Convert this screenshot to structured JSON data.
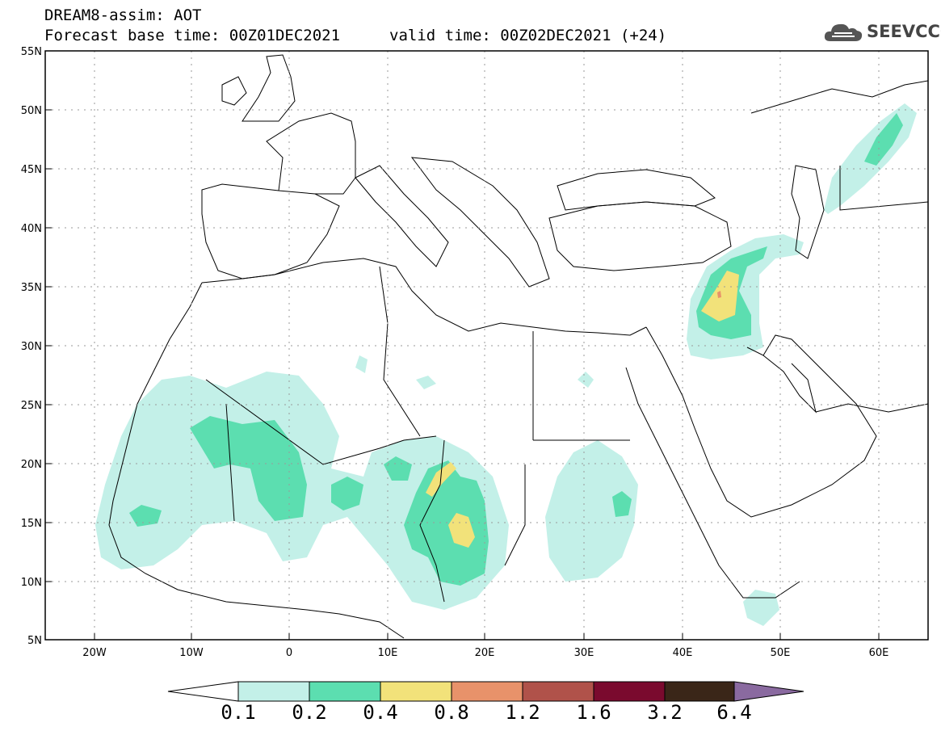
{
  "header": {
    "line1": "DREAM8-assim: AOT",
    "line2": "Forecast base time: 00Z01DEC2021",
    "valid": "valid time: 00Z02DEC2021 (+24)"
  },
  "logo": {
    "text": "SEEVCCC",
    "icon": "cloud-icon"
  },
  "map": {
    "lon_range": [
      -25,
      65
    ],
    "lat_range": [
      5,
      55
    ],
    "lat_labels": [
      "5N",
      "10N",
      "15N",
      "20N",
      "25N",
      "30N",
      "35N",
      "40N",
      "45N",
      "50N",
      "55N"
    ],
    "lon_labels": [
      "20W",
      "10W",
      "0",
      "10E",
      "20E",
      "30E",
      "40E",
      "50E",
      "60E"
    ],
    "gridlines": "dotted"
  },
  "colorbar": {
    "labels": [
      "0.1",
      "0.2",
      "0.4",
      "0.8",
      "1.2",
      "1.6",
      "3.2",
      "6.4"
    ],
    "colors": [
      "#c3f0e8",
      "#5cdeb0",
      "#f2e27a",
      "#e8926a",
      "#b0524a",
      "#7a0a2e",
      "#3a2618",
      "#8a6aa0"
    ]
  }
}
